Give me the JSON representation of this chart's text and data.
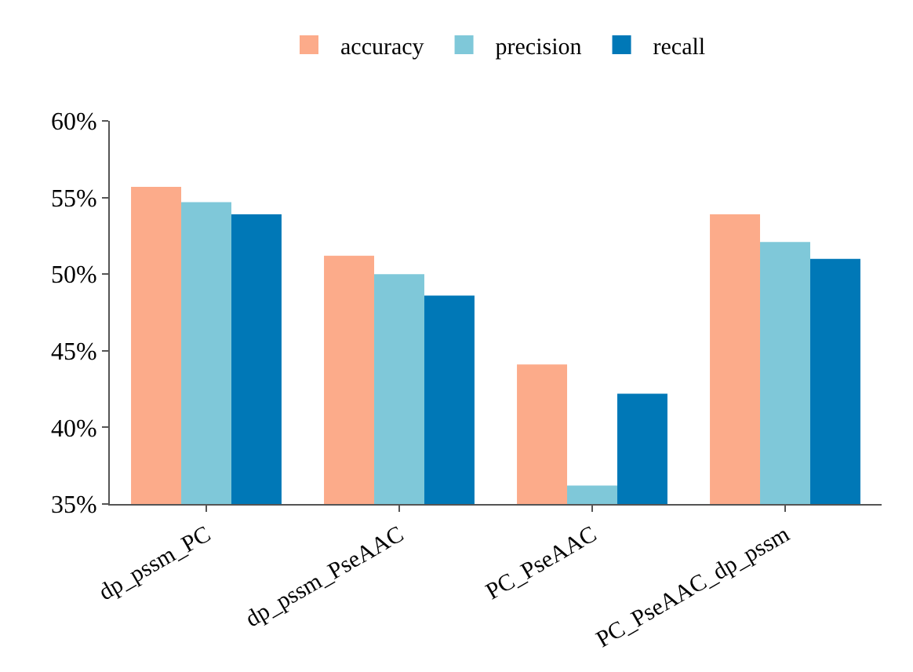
{
  "chart_data": {
    "type": "bar",
    "categories": [
      "dp_pssm_PC",
      "dp_pssm_PseAAC",
      "PC_PseAAC",
      "PC_PseAAC_dp_pssm"
    ],
    "series": [
      {
        "name": "accuracy",
        "color": "#fcab8a",
        "values": [
          55.7,
          51.2,
          44.1,
          53.9
        ]
      },
      {
        "name": "precision",
        "color": "#7fc8d9",
        "values": [
          54.7,
          50.0,
          36.2,
          52.1
        ]
      },
      {
        "name": "recall",
        "color": "#0078b7",
        "values": [
          53.9,
          48.6,
          42.2,
          51.0
        ]
      }
    ],
    "ylim": [
      35,
      60
    ],
    "yticks": [
      {
        "value": 35,
        "label": "35%"
      },
      {
        "value": 40,
        "label": "40%"
      },
      {
        "value": 45,
        "label": "45%"
      },
      {
        "value": 50,
        "label": "50%"
      },
      {
        "value": 55,
        "label": "55%"
      },
      {
        "value": 60,
        "label": "60%"
      }
    ],
    "grid": false,
    "legend": "top"
  }
}
